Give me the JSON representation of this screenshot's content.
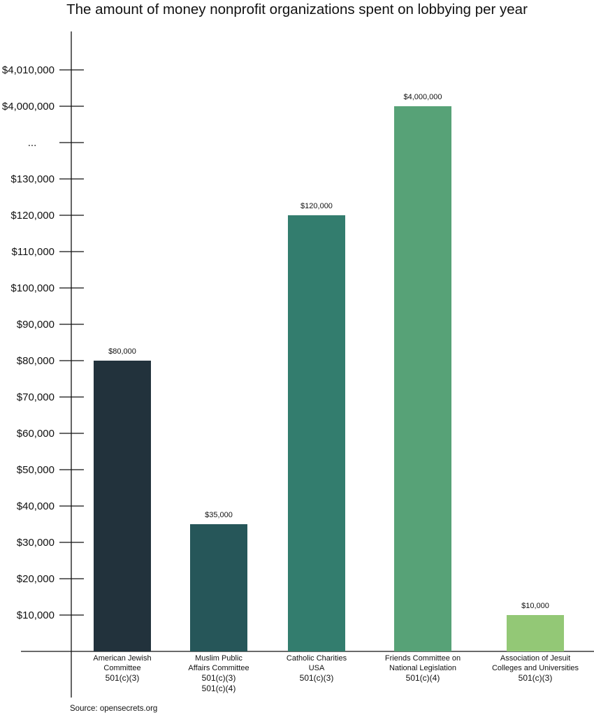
{
  "chart_data": {
    "type": "bar",
    "title": "The amount of money nonprofit organizations spent on lobbying per year",
    "xlabel": "",
    "ylabel": "",
    "axis_break": true,
    "ytick_labels": [
      "$10,000",
      "$20,000",
      "$30,000",
      "$40,000",
      "$50,000",
      "$60,000",
      "$70,000",
      "$80,000",
      "$90,000",
      "$100,000",
      "$110,000",
      "$120,000",
      "$130,000",
      "...",
      "$4,000,000",
      "$4,010,000"
    ],
    "categories": [
      {
        "name": "American Jewish Committee",
        "lines": [
          "American Jewish",
          "Committee"
        ],
        "codes": [
          "501(c)(3)"
        ]
      },
      {
        "name": "Muslim Public Affairs Committee",
        "lines": [
          "Muslim Public",
          "Affairs Committee"
        ],
        "codes": [
          "501(c)(3)",
          "501(c)(4)"
        ]
      },
      {
        "name": "Catholic Charities USA",
        "lines": [
          "Catholic Charities",
          "USA"
        ],
        "codes": [
          "501(c)(3)"
        ]
      },
      {
        "name": "Friends Committee on National Legislation",
        "lines": [
          "Friends Committee on",
          "National Legislation"
        ],
        "codes": [
          "501(c)(4)"
        ]
      },
      {
        "name": "Association of Jesuit Colleges and Universities",
        "lines": [
          "Association of Jesuit",
          "Colleges and Universities"
        ],
        "codes": [
          "501(c)(3)"
        ]
      }
    ],
    "values": [
      80000,
      35000,
      120000,
      4000000,
      10000
    ],
    "value_labels": [
      "$80,000",
      "$35,000",
      "$120,000",
      "$4,000,000",
      "$10,000"
    ],
    "colors": [
      "#22323c",
      "#265659",
      "#337d6e",
      "#57a277",
      "#93c876"
    ],
    "grid": false
  },
  "source": "Source: opensecrets.org"
}
